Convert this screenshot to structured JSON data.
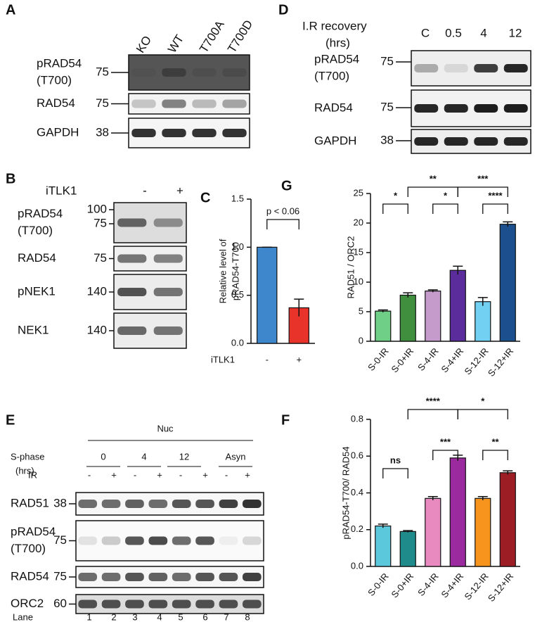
{
  "panel_labels": [
    "A",
    "B",
    "C",
    "D",
    "E",
    "F",
    "G"
  ],
  "blots": [
    {
      "lanes": [
        "KO",
        "WT",
        "T700A",
        "T700D"
      ],
      "rows": [
        {
          "name": [
            "pRAD54",
            "(T700)"
          ],
          "marker": [
            75
          ]
        },
        {
          "name": [
            "RAD54"
          ],
          "marker": [
            75
          ]
        },
        {
          "name": [
            "GAPDH"
          ],
          "marker": [
            38
          ]
        }
      ]
    },
    {
      "header": [
        "I.R recovery",
        "(hrs)"
      ],
      "lanes": [
        "C",
        0.5,
        4,
        12
      ],
      "rows": [
        {
          "name": [
            "pRAD54",
            "(T700)"
          ],
          "marker": [
            75
          ]
        },
        {
          "name": [
            "RAD54"
          ],
          "marker": [
            75
          ]
        },
        {
          "name": [
            "GAPDH"
          ],
          "marker": [
            38
          ]
        }
      ]
    },
    {
      "condition": "iTLK1",
      "lanes": [
        "-",
        "+"
      ],
      "rows": [
        {
          "name": [
            "pRAD54",
            "(T700)"
          ],
          "marker": [
            100,
            75
          ]
        },
        {
          "name": [
            "RAD54"
          ],
          "marker": [
            75
          ]
        },
        {
          "name": [
            "pNEK1"
          ],
          "marker": [
            140
          ]
        },
        {
          "name": [
            "NEK1"
          ],
          "marker": [
            140
          ]
        }
      ]
    },
    {
      "group": "Nuc",
      "condition": [
        "S-phase",
        "(hrs)"
      ],
      "timepoints": [
        0,
        4,
        12,
        "Asyn"
      ],
      "treatment": "IR",
      "lanes": [
        "-",
        "+",
        "-",
        "+",
        "-",
        "+",
        "-",
        "+"
      ],
      "rows": [
        {
          "name": [
            "RAD51"
          ],
          "marker": [
            38
          ]
        },
        {
          "name": [
            "pRAD54",
            "(T700)"
          ],
          "marker": [
            75
          ]
        },
        {
          "name": [
            "RAD54"
          ],
          "marker": [
            75
          ]
        },
        {
          "name": [
            "ORC2"
          ],
          "marker": [
            60
          ]
        }
      ],
      "lane_label": "Lane",
      "lane_numbers": [
        1,
        2,
        3,
        4,
        5,
        6,
        7,
        8
      ]
    }
  ],
  "chart_data": [
    {
      "type": "bar",
      "ylabel": [
        "Relative level of",
        "pRAD54-T700"
      ],
      "xlabel": "iTLK1",
      "categories": [
        "-",
        "+"
      ],
      "values": [
        1.0,
        0.37
      ],
      "errors": [
        0,
        0.09
      ],
      "colors": [
        "#3f87cc",
        "#e8332b"
      ],
      "ylim": [
        0,
        1.5
      ],
      "yticks": [
        {
          "value": 0,
          "label": "0.0"
        },
        {
          "value": 0.5,
          "label": "0.5"
        },
        {
          "value": 1.0,
          "label": "1.0"
        },
        {
          "value": 1.5,
          "label": "1.5"
        }
      ],
      "annotations": [
        "p < 0.06"
      ]
    },
    {
      "type": "bar",
      "ylabel": [
        "RAD51 / ORC2"
      ],
      "categories": [
        "S-0-IR",
        "S-0+IR",
        "S-4-IR",
        "S-4+IR",
        "S-12-IR",
        "S-12+IR"
      ],
      "values": [
        5.1,
        7.8,
        8.5,
        12.0,
        6.7,
        19.8
      ],
      "errors": [
        0.2,
        0.4,
        0.2,
        0.7,
        0.7,
        0.4
      ],
      "colors": [
        "#6fcf87",
        "#3f8f3f",
        "#c49bcb",
        "#5b2d9c",
        "#72d0f2",
        "#1b4f8e"
      ],
      "ylim": [
        0,
        25
      ],
      "yticks": [
        0,
        5,
        10,
        15,
        20,
        25
      ],
      "annotations": [
        "*",
        "**",
        "*",
        "***",
        "****"
      ]
    },
    {
      "type": "bar",
      "ylabel": [
        "pRAD54-T700/ RAD54"
      ],
      "categories": [
        "S-0-IR",
        "S-0+IR",
        "S-4-IR",
        "S-4+IR",
        "S-12-IR",
        "S-12+IR"
      ],
      "values": [
        0.22,
        0.19,
        0.37,
        0.59,
        0.37,
        0.51
      ],
      "errors": [
        0.01,
        0.005,
        0.01,
        0.015,
        0.01,
        0.01
      ],
      "colors": [
        "#5cc8dc",
        "#1f8b8b",
        "#e88ac0",
        "#9b2a9e",
        "#f7941d",
        "#9c1d24"
      ],
      "ylim": [
        0,
        0.8
      ],
      "yticks": [
        {
          "value": 0,
          "label": "0.0"
        },
        {
          "value": 0.2,
          "label": "0.2"
        },
        {
          "value": 0.4,
          "label": "0.4"
        },
        {
          "value": 0.6,
          "label": "0.6"
        },
        {
          "value": 0.8,
          "label": "0.8"
        }
      ],
      "annotations": [
        "ns",
        "****",
        "***",
        "*",
        "**"
      ]
    }
  ]
}
